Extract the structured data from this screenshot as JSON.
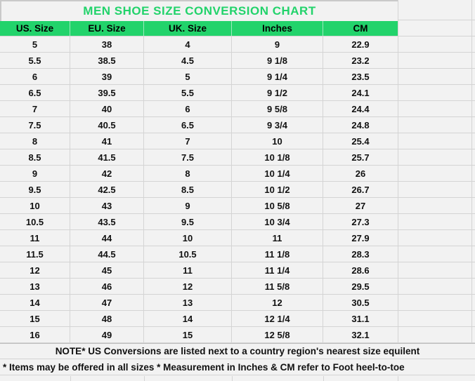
{
  "title": "MEN SHOE SIZE CONVERSION CHART",
  "colors": {
    "accent_green": "#22D36B",
    "cell_background": "#F2F2F2",
    "gridline": "#D4D4D4",
    "table_border": "#C9C9C9",
    "text": "#111111"
  },
  "chart_data": {
    "type": "table",
    "title": "MEN SHOE SIZE CONVERSION CHART",
    "columns": [
      "US. Size",
      "EU. Size",
      "UK. Size",
      "Inches",
      "CM"
    ],
    "rows": [
      [
        "5",
        "38",
        "4",
        "9",
        "22.9"
      ],
      [
        "5.5",
        "38.5",
        "4.5",
        "9 1/8",
        "23.2"
      ],
      [
        "6",
        "39",
        "5",
        "9 1/4",
        "23.5"
      ],
      [
        "6.5",
        "39.5",
        "5.5",
        "9 1/2",
        "24.1"
      ],
      [
        "7",
        "40",
        "6",
        "9 5/8",
        "24.4"
      ],
      [
        "7.5",
        "40.5",
        "6.5",
        "9 3/4",
        "24.8"
      ],
      [
        "8",
        "41",
        "7",
        "10",
        "25.4"
      ],
      [
        "8.5",
        "41.5",
        "7.5",
        "10 1/8",
        "25.7"
      ],
      [
        "9",
        "42",
        "8",
        "10 1/4",
        "26"
      ],
      [
        "9.5",
        "42.5",
        "8.5",
        "10 1/2",
        "26.7"
      ],
      [
        "10",
        "43",
        "9",
        "10 5/8",
        "27"
      ],
      [
        "10.5",
        "43.5",
        "9.5",
        "10 3/4",
        "27.3"
      ],
      [
        "11",
        "44",
        "10",
        "11",
        "27.9"
      ],
      [
        "11.5",
        "44.5",
        "10.5",
        "11 1/8",
        "28.3"
      ],
      [
        "12",
        "45",
        "11",
        "11 1/4",
        "28.6"
      ],
      [
        "13",
        "46",
        "12",
        "11 5/8",
        "29.5"
      ],
      [
        "14",
        "47",
        "13",
        "12",
        "30.5"
      ],
      [
        "15",
        "48",
        "14",
        "12 1/4",
        "31.1"
      ],
      [
        "16",
        "49",
        "15",
        "12 5/8",
        "32.1"
      ]
    ]
  },
  "notes": {
    "note1": "NOTE* US Conversions are listed next to a country region's nearest size equilent",
    "note2": "* Items may be offered in all sizes * Measurement in Inches & CM refer to Foot heel-to-toe"
  }
}
